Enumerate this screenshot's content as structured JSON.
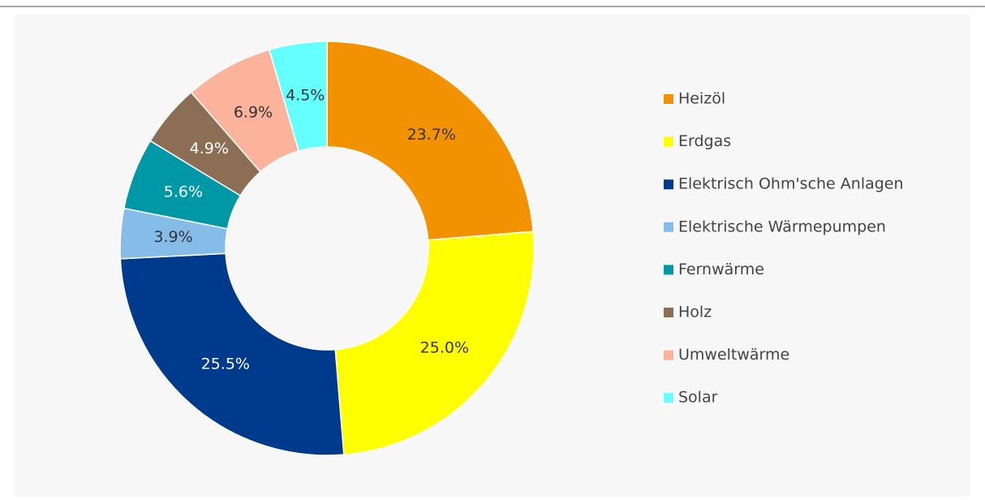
{
  "chart_data": {
    "type": "donut",
    "categories": [
      "Heizöl",
      "Erdgas",
      "Elektrisch Ohm'sche Anlagen",
      "Elektrische Wärmepumpen",
      "Fernwärme",
      "Holz",
      "Umweltwärme",
      "Solar"
    ],
    "values": [
      23.7,
      25.0,
      25.5,
      3.9,
      5.6,
      4.9,
      6.9,
      4.5
    ],
    "value_labels": [
      "23.7%",
      "25.0%",
      "25.5%",
      "3.9%",
      "5.6%",
      "4.9%",
      "6.9%",
      "4.5%"
    ],
    "colors": [
      "#f39200",
      "#ffff00",
      "#003a8c",
      "#85bde8",
      "#0097a7",
      "#8c6e55",
      "#fbb49b",
      "#66ffff"
    ],
    "legend": "right"
  }
}
